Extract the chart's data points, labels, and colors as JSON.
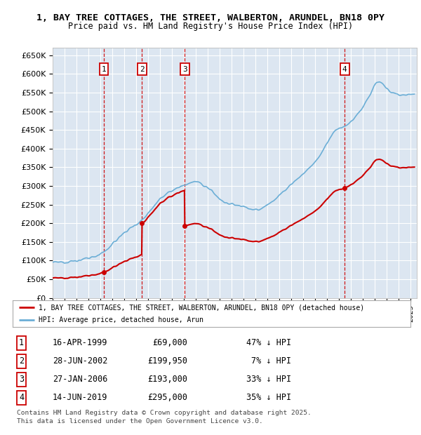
{
  "title1": "1, BAY TREE COTTAGES, THE STREET, WALBERTON, ARUNDEL, BN18 0PY",
  "title2": "Price paid vs. HM Land Registry's House Price Index (HPI)",
  "ylim": [
    0,
    670000
  ],
  "yticks": [
    0,
    50000,
    100000,
    150000,
    200000,
    250000,
    300000,
    350000,
    400000,
    450000,
    500000,
    550000,
    600000,
    650000
  ],
  "ytick_labels": [
    "£0",
    "£50K",
    "£100K",
    "£150K",
    "£200K",
    "£250K",
    "£300K",
    "£350K",
    "£400K",
    "£450K",
    "£500K",
    "£550K",
    "£600K",
    "£650K"
  ],
  "xlim_start": 1995.0,
  "xlim_end": 2025.5,
  "background_color": "#dce6f1",
  "grid_color": "#ffffff",
  "hpi_color": "#6baed6",
  "price_color": "#cc0000",
  "transactions": [
    {
      "label": 1,
      "date_decimal": 1999.29,
      "price": 69000,
      "date_str": "16-APR-1999",
      "price_str": "£69,000",
      "pct_str": "47% ↓ HPI"
    },
    {
      "label": 2,
      "date_decimal": 2002.49,
      "price": 199950,
      "date_str": "28-JUN-2002",
      "price_str": "£199,950",
      "pct_str": "7% ↓ HPI"
    },
    {
      "label": 3,
      "date_decimal": 2006.07,
      "price": 193000,
      "date_str": "27-JAN-2006",
      "price_str": "£193,000",
      "pct_str": "33% ↓ HPI"
    },
    {
      "label": 4,
      "date_decimal": 2019.45,
      "price": 295000,
      "date_str": "14-JUN-2019",
      "price_str": "£295,000",
      "pct_str": "35% ↓ HPI"
    }
  ],
  "legend_line1": "1, BAY TREE COTTAGES, THE STREET, WALBERTON, ARUNDEL, BN18 0PY (detached house)",
  "legend_line2": "HPI: Average price, detached house, Arun",
  "footer1": "Contains HM Land Registry data © Crown copyright and database right 2025.",
  "footer2": "This data is licensed under the Open Government Licence v3.0."
}
